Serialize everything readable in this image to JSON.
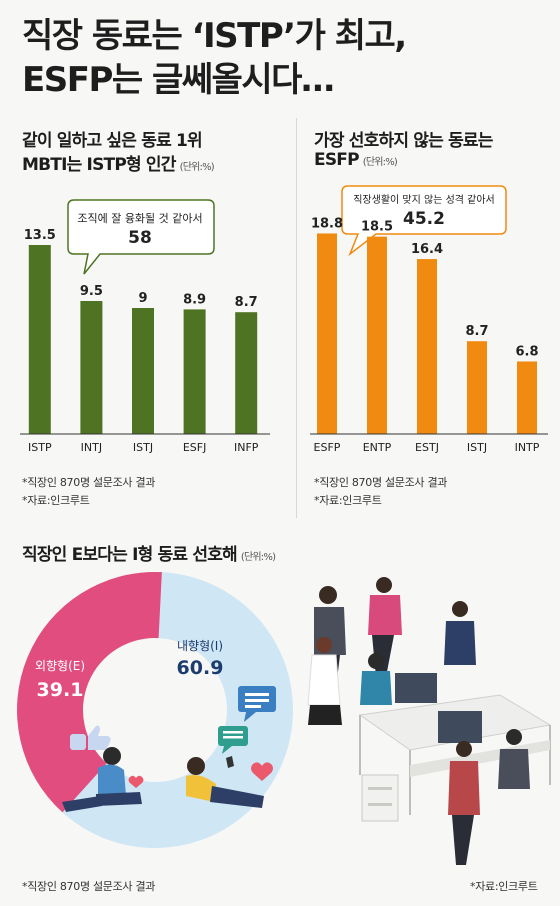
{
  "title": {
    "line1": "직장 동료는 ‘ISTP’가 최고,",
    "line2": "ESFP는 글쎄올시다…"
  },
  "colors": {
    "green": "#4e7322",
    "orange": "#f08a10",
    "pink": "#e14d7e",
    "lightblue": "#cfe6f5",
    "callout_fill": "#ffffff",
    "callout_border_green": "#4e7322",
    "callout_border_orange": "#f08a10"
  },
  "chart_data": [
    {
      "type": "bar",
      "title": "같이 일하고 싶은 동료 1위",
      "subtitle": "MBTI는 ISTP형 인간",
      "unit": "(단위:%)",
      "categories": [
        "ISTP",
        "INTJ",
        "ISTJ",
        "ESFJ",
        "INFP"
      ],
      "values": [
        13.5,
        9.5,
        9,
        8.9,
        8.7
      ],
      "value_labels": [
        "13.5",
        "9.5",
        "9",
        "8.9",
        "8.7"
      ],
      "ylim": [
        0,
        16
      ],
      "grid": false,
      "callout": {
        "text": "조직에 잘 융화될 것 같아서",
        "value": "58"
      },
      "notes": [
        "*직장인 870명 설문조사 결과",
        "*자료:인크루트"
      ]
    },
    {
      "type": "bar",
      "title": "가장 선호하지 않는 동료는",
      "subtitle": "ESFP",
      "unit": "(단위:%)",
      "categories": [
        "ESFP",
        "ENTP",
        "ESTJ",
        "ISTJ",
        "INTP"
      ],
      "values": [
        18.8,
        18.5,
        16.4,
        8.7,
        6.8
      ],
      "value_labels": [
        "18.8",
        "18.5",
        "16.4",
        "8.7",
        "6.8"
      ],
      "ylim": [
        0,
        21
      ],
      "grid": false,
      "callout": {
        "text": "직장생활이 맞지 않는 성격 같아서",
        "value": "45.2"
      },
      "notes": [
        "*직장인 870명 설문조사 결과",
        "*자료:인크루트"
      ]
    },
    {
      "type": "pie",
      "title": "직장인 E보다는 I형 동료 선호해",
      "unit": "(단위:%)",
      "slices": [
        {
          "label": "내향형(I)",
          "value": 60.9,
          "value_label": "60.9"
        },
        {
          "label": "외향형(E)",
          "value": 39.1,
          "value_label": "39.1"
        }
      ],
      "notes": [
        "*직장인 870명 설문조사 결과",
        "*자료:인크루트"
      ]
    }
  ]
}
